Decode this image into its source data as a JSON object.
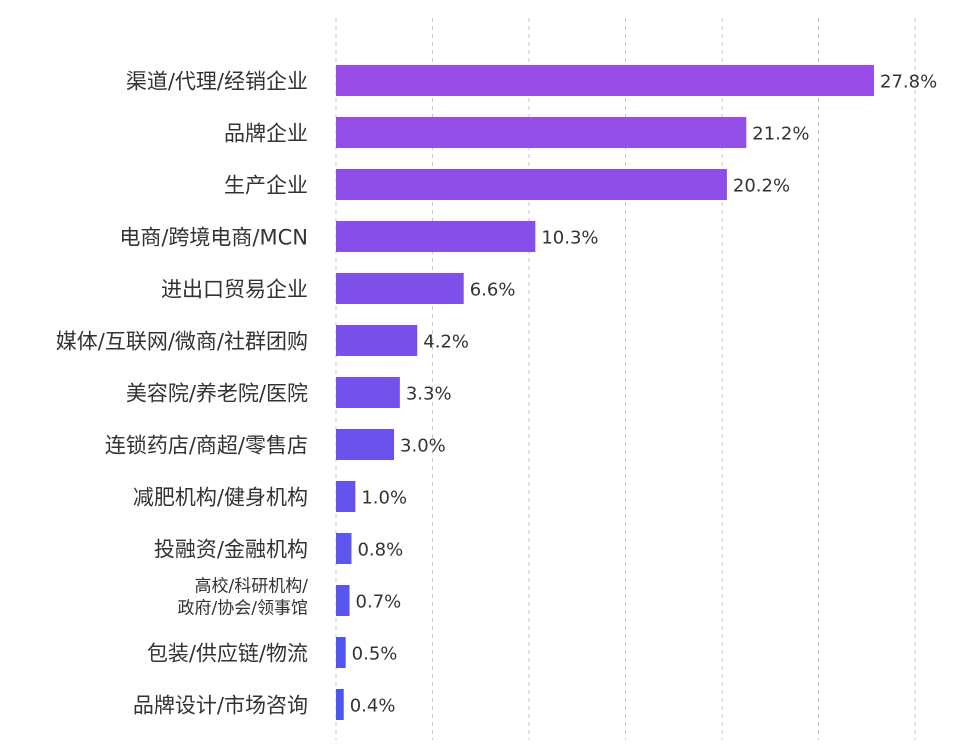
{
  "chart_data": {
    "type": "bar",
    "orientation": "horizontal",
    "categories": [
      "渠道/代理/经销企业",
      "品牌企业",
      "生产企业",
      "电商/跨境电商/MCN",
      "进出口贸易企业",
      "媒体/互联网/微商/社群团购",
      "美容院/养老院/医院",
      "连锁药店/商超/零售店",
      "减肥机构/健身机构",
      "投融资/金融机构",
      [
        "高校/科研机构/",
        "政府/协会/领事馆"
      ],
      "包装/供应链/物流",
      "品牌设计/市场咨询"
    ],
    "values": [
      27.8,
      21.2,
      20.2,
      10.3,
      6.6,
      4.2,
      3.3,
      3.0,
      1.0,
      0.8,
      0.7,
      0.5,
      0.4
    ],
    "value_labels": [
      "27.8%",
      "21.2%",
      "20.2%",
      "10.3%",
      "6.6%",
      "4.2%",
      "3.3%",
      "3.0%",
      "1.0%",
      "0.8%",
      "0.7%",
      "0.5%",
      "0.4%"
    ],
    "xlim": [
      0,
      30
    ],
    "grid": "vertical dashed",
    "colors": {
      "top": "#9a4de6",
      "bottom": "#4a56f0"
    }
  }
}
